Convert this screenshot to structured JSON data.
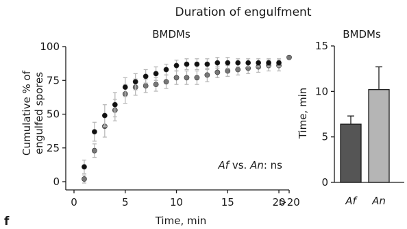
{
  "figure": {
    "title": "Duration of engulfment",
    "panel_label": "f"
  },
  "chart_data": [
    {
      "type": "scatter",
      "title": "BMDMs",
      "xlabel": "Time, min",
      "ylabel_line1": "Cumulative % of",
      "ylabel_line2": "engulfed spores",
      "xlim": [
        0,
        21
      ],
      "ylim": [
        0,
        100
      ],
      "x_ticks": [
        0,
        5,
        10,
        15,
        20
      ],
      "x_tick_extra": {
        "value": 21,
        "label": ">20"
      },
      "y_ticks": [
        0,
        25,
        50,
        75,
        100
      ],
      "grid": false,
      "annotation": {
        "part1": "Af",
        "part2": " vs. ",
        "part3": "An",
        "part4": ": ns"
      },
      "series": [
        {
          "color": "#111111",
          "x": [
            1,
            2,
            3,
            4,
            5,
            6,
            7,
            8,
            9,
            10,
            11,
            12,
            13,
            14,
            15,
            16,
            17,
            18,
            19,
            20
          ],
          "y": [
            11,
            37,
            49,
            57,
            70,
            74,
            78,
            80,
            83,
            86,
            87,
            87,
            87,
            88,
            88,
            88,
            88,
            88,
            88,
            88
          ],
          "err": [
            5,
            7,
            8,
            9,
            7,
            6,
            5,
            5,
            4,
            4,
            4,
            4,
            4,
            4,
            4,
            3,
            3,
            3,
            3,
            3
          ]
        },
        {
          "color": "#777777",
          "x": [
            1,
            2,
            3,
            4,
            5,
            6,
            7,
            8,
            9,
            10,
            11,
            12,
            13,
            14,
            15,
            16,
            17,
            18,
            19,
            20
          ],
          "y": [
            2,
            23,
            41,
            53,
            65,
            70,
            71,
            72,
            74,
            77,
            77,
            77,
            79,
            81,
            82,
            83,
            84,
            85,
            86,
            86
          ],
          "err": [
            3,
            5,
            8,
            8,
            7,
            6,
            5,
            5,
            5,
            5,
            5,
            5,
            5,
            4,
            4,
            4,
            4,
            4,
            4,
            4
          ]
        },
        {
          "color": "#777777",
          "x": [
            21
          ],
          "y": [
            92
          ],
          "err": [
            0
          ]
        }
      ]
    },
    {
      "type": "bar",
      "title": "BMDMs",
      "ylabel": "Time, min",
      "categories": [
        "Af",
        "An"
      ],
      "values": [
        6.4,
        10.2
      ],
      "errors": [
        0.9,
        2.5
      ],
      "colors": [
        "#555555",
        "#b5b5b5"
      ],
      "ylim": [
        0,
        15
      ],
      "y_ticks": [
        0,
        5,
        10,
        15
      ],
      "grid": false
    }
  ]
}
